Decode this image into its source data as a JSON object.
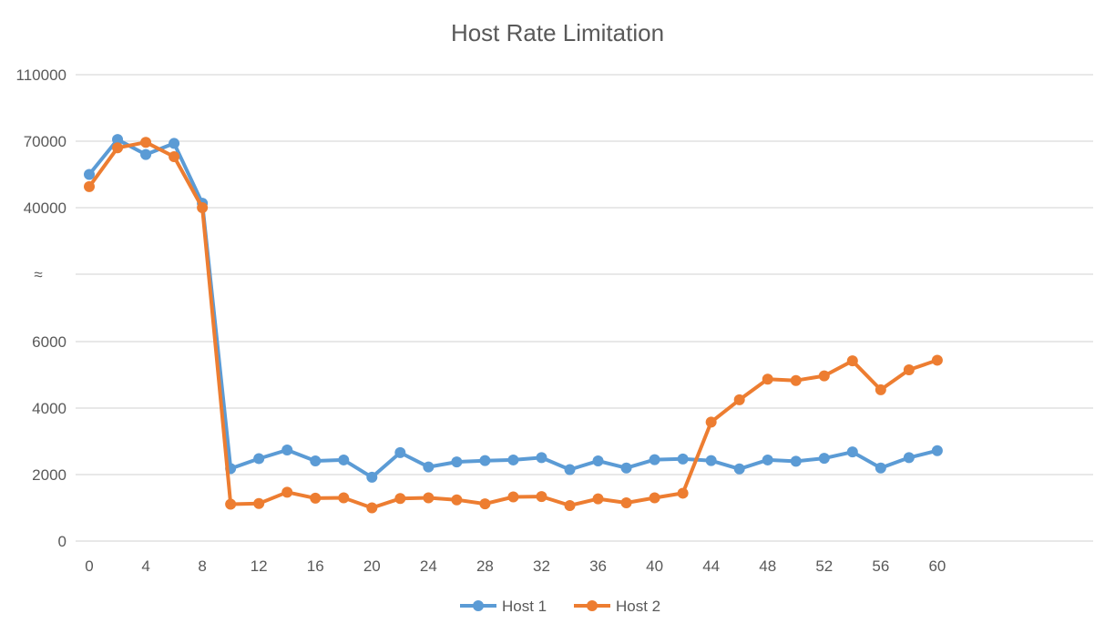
{
  "chart_data": {
    "type": "line",
    "title": "Host Rate Limitation",
    "xlabel": "",
    "ylabel": "",
    "x": [
      0,
      2,
      4,
      6,
      8,
      10,
      12,
      14,
      16,
      18,
      20,
      22,
      24,
      26,
      28,
      30,
      32,
      34,
      36,
      38,
      40,
      42,
      44,
      46,
      48,
      50,
      52,
      54,
      56,
      58,
      60
    ],
    "x_tick_labels": [
      "0",
      "4",
      "8",
      "12",
      "16",
      "20",
      "24",
      "28",
      "32",
      "36",
      "40",
      "44",
      "48",
      "52",
      "56",
      "60"
    ],
    "y_tick_labels": [
      "110000",
      "70000",
      "40000",
      "≈",
      "6000",
      "4000",
      "2000",
      "0"
    ],
    "y_axis": "broken axis: linear 0–6000 below the break, then 40000, 70000, 110000 above",
    "grid": true,
    "legend_position": "bottom",
    "series": [
      {
        "name": "Host 1",
        "color": "#5b9bd5",
        "values": [
          55000,
          71000,
          64000,
          69000,
          42000,
          2180,
          2480,
          2740,
          2410,
          2440,
          1920,
          2660,
          2230,
          2380,
          2420,
          2440,
          2510,
          2150,
          2410,
          2200,
          2450,
          2470,
          2420,
          2170,
          2440,
          2400,
          2490,
          2680,
          2200,
          2510,
          2720
        ]
      },
      {
        "name": "Host 2",
        "color": "#ed7d31",
        "values": [
          49500,
          67000,
          69500,
          63000,
          40000,
          1110,
          1130,
          1470,
          1290,
          1300,
          1000,
          1280,
          1300,
          1240,
          1120,
          1330,
          1340,
          1070,
          1270,
          1150,
          1300,
          1440,
          3580,
          4250,
          4870,
          4830,
          4970,
          5420,
          4550,
          5150,
          5440
        ]
      }
    ]
  }
}
